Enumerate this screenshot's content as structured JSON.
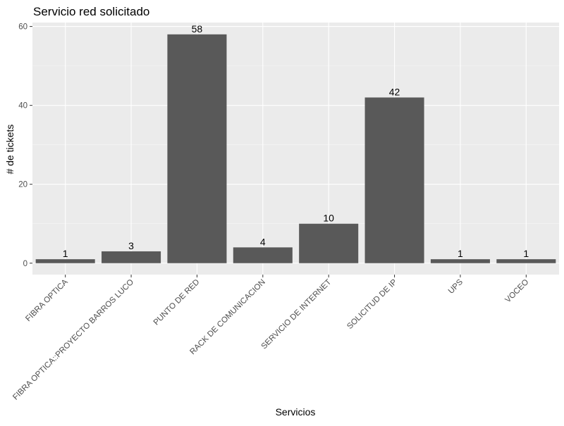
{
  "chart_data": {
    "type": "bar",
    "title": "Servicio red solicitado",
    "xlabel": "Servicios",
    "ylabel": "# de tickets",
    "categories": [
      "FIBRA OPTICA",
      "FIBRA OPTICA::PROYECTO BARROS LUCO",
      "PUNTO DE RED",
      "RACK DE COMUNICACION",
      "SERVICIO DE INTERNET",
      "SOLICITUD DE IP",
      "UPS",
      "VOCEO"
    ],
    "values": [
      1,
      3,
      58,
      4,
      10,
      42,
      1,
      1
    ],
    "data_labels": [
      "1",
      "3",
      "58",
      "4",
      "10",
      "42",
      "1",
      "1"
    ],
    "ylim": [
      -2.9,
      61
    ],
    "yticks": [
      0,
      20,
      40,
      60
    ],
    "ytick_labels": [
      "0",
      "20",
      "40",
      "60"
    ],
    "grid": true,
    "legend": "none",
    "colors": {
      "bar": "#595959",
      "panel": "#ebebeb",
      "grid_major": "#ffffff",
      "grid_minor": "#f5f5f5",
      "tick_text": "#4d4d4d",
      "text": "#000000"
    }
  }
}
